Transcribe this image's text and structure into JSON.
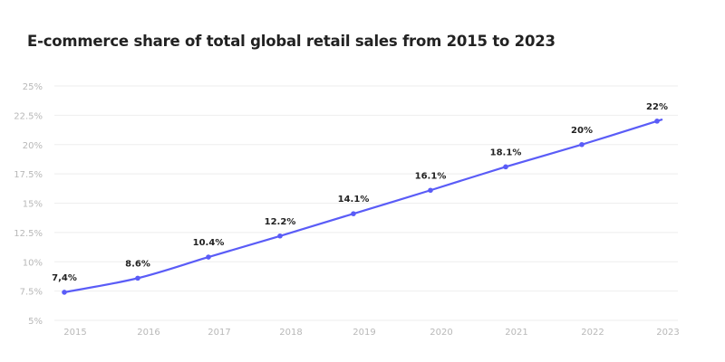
{
  "chart_data": {
    "type": "line",
    "title": "E-commerce share of total global retail sales from 2015 to 2023",
    "xlabel": "",
    "ylabel": "",
    "categories": [
      "2015",
      "2016",
      "2017",
      "2018",
      "2019",
      "2020",
      "2021",
      "2022",
      "2023"
    ],
    "values": [
      7.4,
      8.6,
      10.4,
      12.2,
      14.1,
      16.1,
      18.1,
      20,
      22
    ],
    "data_labels": [
      "7,4%",
      "8.6%",
      "10.4%",
      "12.2%",
      "14.1%",
      "16.1%",
      "18.1%",
      "20%",
      "22%"
    ],
    "y_ticks": [
      5,
      7.5,
      10,
      12.5,
      15,
      17.5,
      20,
      22.5,
      25
    ],
    "y_tick_labels": [
      "5%",
      "7.5%",
      "10%",
      "12.5%",
      "15%",
      "17.5%",
      "20%",
      "22.5%",
      "25%"
    ],
    "ylim": [
      5,
      25
    ],
    "grid": true,
    "legend": "none",
    "line_color": "#5a5cf7",
    "grid_color": "#eeeeee"
  }
}
